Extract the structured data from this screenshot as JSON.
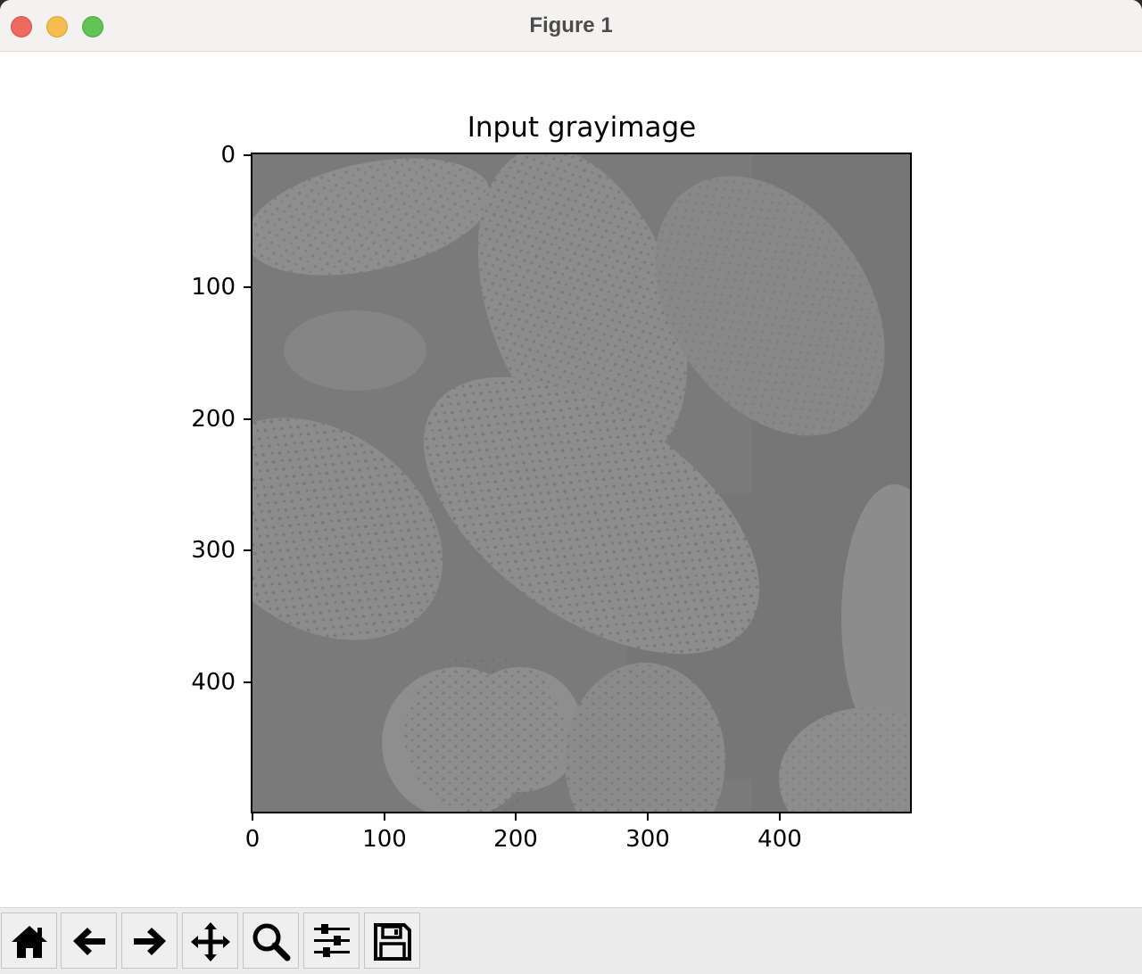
{
  "window": {
    "title": "Figure 1"
  },
  "figure": {
    "title": "Input grayimage",
    "y_ticks": [
      "0",
      "100",
      "200",
      "300",
      "400"
    ],
    "x_ticks": [
      "0",
      "100",
      "200",
      "300",
      "400"
    ]
  },
  "toolbar": {
    "buttons": [
      "home-icon",
      "back-arrow-icon",
      "forward-arrow-icon",
      "pan-icon",
      "zoom-icon",
      "configure-subplots-icon",
      "save-icon"
    ]
  },
  "colors": {
    "image_background": "#7c7c7c",
    "grain_fill": "#8d8d8d",
    "grain_dots": "#6a6a6a"
  }
}
